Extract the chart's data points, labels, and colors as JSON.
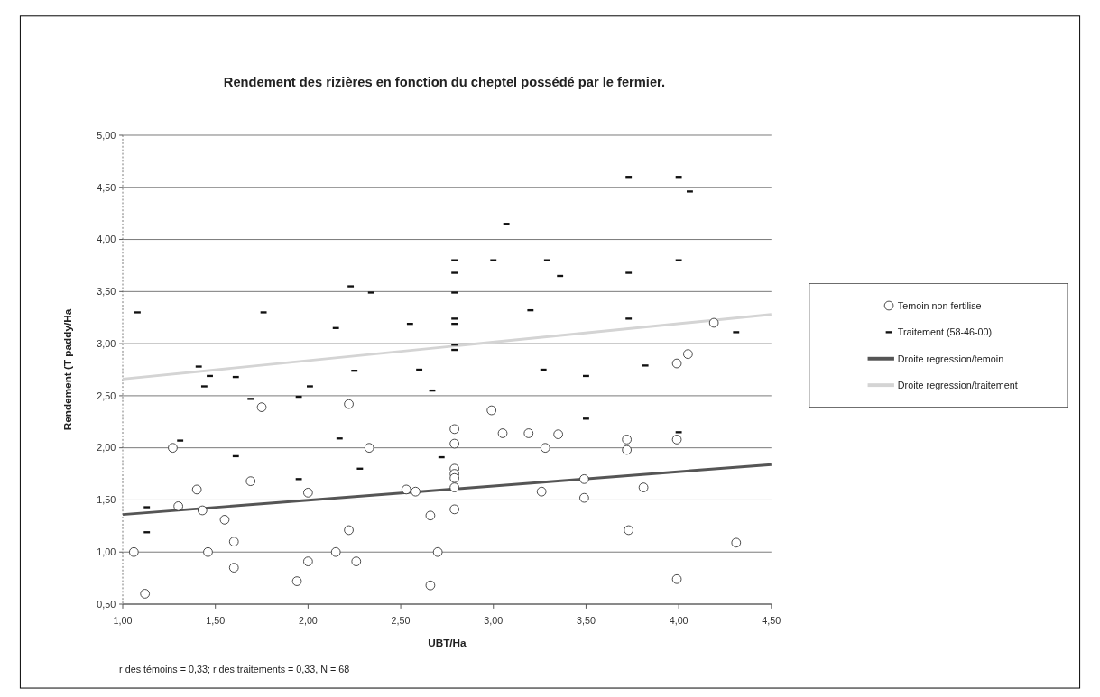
{
  "chart_data": {
    "type": "scatter",
    "title": "Rendement des rizières en fonction du cheptel possédé par le fermier.",
    "xlabel": "UBT/Ha",
    "ylabel": "Rendement (T paddy/Ha",
    "annotations": [
      "r des témoins = 0,33; r des traitements = 0,33, N = 68"
    ],
    "xlim": [
      1,
      4.5
    ],
    "xticks": [
      {
        "value": 1,
        "label": "1,00"
      },
      {
        "value": 1.5,
        "label": "1,50"
      },
      {
        "value": 2,
        "label": "2,00"
      },
      {
        "value": 2.5,
        "label": "2,50"
      },
      {
        "value": 3,
        "label": "3,00"
      },
      {
        "value": 3.5,
        "label": "3,50"
      },
      {
        "value": 4,
        "label": "4,00"
      },
      {
        "value": 4.5,
        "label": "4,50"
      }
    ],
    "ylim": [
      0.5,
      5
    ],
    "yticks": [
      {
        "value": 0.5,
        "label": "0,50"
      },
      {
        "value": 1,
        "label": "1,00"
      },
      {
        "value": 1.5,
        "label": "1,50"
      },
      {
        "value": 2,
        "label": "2,00"
      },
      {
        "value": 2.5,
        "label": "2,50"
      },
      {
        "value": 3,
        "label": "3,00"
      },
      {
        "value": 3.5,
        "label": "3,50"
      },
      {
        "value": 4,
        "label": "4,00"
      },
      {
        "value": 4.5,
        "label": "4,50"
      },
      {
        "value": 5,
        "label": "5,00"
      }
    ],
    "grid": "y",
    "legend": "right",
    "series": [
      {
        "name": "Temoin non fertilise",
        "marker": "circle",
        "color": "#333333",
        "x": [
          1.06,
          1.12,
          1.27,
          1.3,
          1.4,
          1.43,
          1.46,
          1.55,
          1.6,
          1.6,
          1.69,
          1.75,
          1.94,
          2.0,
          2.0,
          2.15,
          2.22,
          2.33,
          2.22,
          2.26,
          2.53,
          2.58,
          2.66,
          2.7,
          2.66,
          2.79,
          2.79,
          2.79,
          2.79,
          2.79,
          2.79,
          2.79,
          2.99,
          3.05,
          3.19,
          3.28,
          3.26,
          3.35,
          3.49,
          3.49,
          3.72,
          3.72,
          3.81,
          3.73,
          3.99,
          3.99,
          4.05,
          4.19,
          4.31,
          3.99
        ],
        "values": [
          1.0,
          0.6,
          2.0,
          1.44,
          1.6,
          1.4,
          1.0,
          1.31,
          1.1,
          0.85,
          1.68,
          2.39,
          0.72,
          1.57,
          0.91,
          1.0,
          2.42,
          2.0,
          1.21,
          0.91,
          1.6,
          1.58,
          1.35,
          1.0,
          0.68,
          2.18,
          2.04,
          1.8,
          1.75,
          1.71,
          1.62,
          1.41,
          2.36,
          2.14,
          2.14,
          2.0,
          1.58,
          2.13,
          1.7,
          1.52,
          2.08,
          1.98,
          1.62,
          1.21,
          2.08,
          2.81,
          2.9,
          3.2,
          1.09,
          0.74
        ]
      },
      {
        "name": "Traitement (58-46-00)",
        "color": "#111111",
        "x": [
          1.08,
          1.13,
          1.13,
          1.31,
          1.41,
          1.47,
          1.44,
          1.61,
          1.61,
          1.76,
          1.69,
          1.95,
          1.95,
          2.01,
          2.15,
          2.17,
          2.23,
          2.34,
          2.25,
          2.28,
          2.55,
          2.6,
          2.67,
          2.72,
          2.79,
          2.79,
          2.79,
          2.79,
          2.79,
          2.79,
          2.79,
          3.0,
          3.07,
          3.2,
          3.27,
          3.29,
          3.36,
          3.5,
          3.5,
          3.73,
          3.73,
          3.73,
          3.82,
          4.0,
          4.06,
          4.0,
          4.0,
          4.31
        ],
        "values": [
          3.3,
          1.43,
          1.19,
          2.07,
          2.78,
          2.69,
          2.59,
          2.68,
          1.92,
          3.3,
          2.47,
          1.7,
          2.49,
          2.59,
          3.15,
          2.09,
          3.55,
          3.49,
          2.74,
          1.8,
          3.19,
          2.75,
          2.55,
          1.91,
          3.8,
          3.68,
          3.49,
          3.24,
          3.19,
          2.99,
          2.94,
          3.8,
          4.15,
          3.32,
          2.75,
          3.8,
          3.65,
          2.69,
          2.28,
          4.6,
          3.68,
          3.24,
          2.79,
          4.6,
          4.46,
          3.8,
          2.15,
          3.11
        ]
      },
      {
        "name": "Droite regression/temoin",
        "type": "line",
        "color": "#555555",
        "x": [
          1,
          4.5
        ],
        "values": [
          1.36,
          1.84
        ]
      },
      {
        "name": "Droite regression/traitement",
        "type": "line",
        "color": "#d4d4d4",
        "x": [
          1,
          4.5
        ],
        "values": [
          2.66,
          3.28
        ]
      }
    ]
  }
}
